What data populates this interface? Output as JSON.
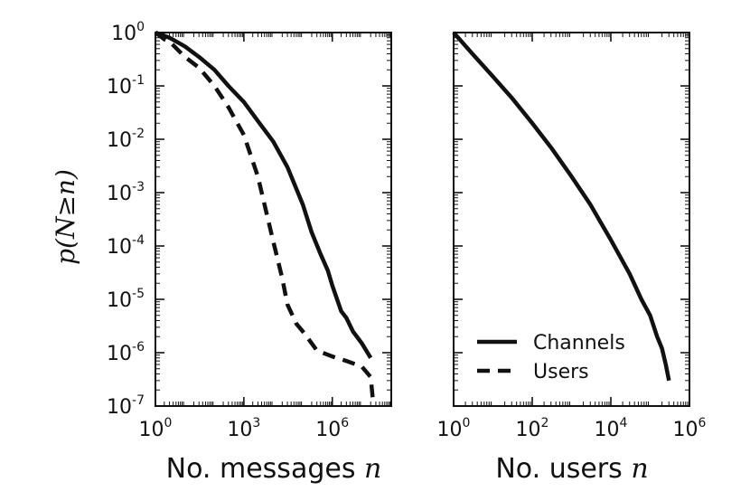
{
  "chart_data": [
    {
      "type": "line",
      "panel": "left",
      "xlabel": "No. messages n",
      "ylabel": "p(N≥n)",
      "xscale": "log",
      "yscale": "log",
      "xlim": [
        1,
        100000000.0
      ],
      "ylim": [
        1e-07,
        1
      ],
      "xticks": [
        {
          "base": "10",
          "exp": "0",
          "value": 1
        },
        {
          "base": "10",
          "exp": "3",
          "value": 1000
        },
        {
          "base": "10",
          "exp": "6",
          "value": 1000000
        }
      ],
      "yticks": [
        {
          "base": "10",
          "exp": "0",
          "value": 1
        },
        {
          "base": "10",
          "exp": "-1",
          "value": 0.1
        },
        {
          "base": "10",
          "exp": "-2",
          "value": 0.01
        },
        {
          "base": "10",
          "exp": "-3",
          "value": 0.001
        },
        {
          "base": "10",
          "exp": "-4",
          "value": 0.0001
        },
        {
          "base": "10",
          "exp": "-5",
          "value": 1e-05
        },
        {
          "base": "10",
          "exp": "-6",
          "value": 1e-06
        },
        {
          "base": "10",
          "exp": "-7",
          "value": 1e-07
        }
      ],
      "series": [
        {
          "name": "Channels",
          "style": "solid",
          "x": [
            1,
            3,
            10,
            30,
            100,
            300,
            1000,
            3000,
            10000,
            30000,
            100000,
            200000,
            400000,
            700000,
            1000000,
            2000000,
            3000000,
            5000000,
            10000000,
            20000000
          ],
          "y": [
            1,
            0.8,
            0.55,
            0.35,
            0.2,
            0.1,
            0.05,
            0.022,
            0.009,
            0.003,
            0.0006,
            0.00018,
            7e-05,
            3.5e-05,
            1.8e-05,
            6e-06,
            4.5e-06,
            2.5e-06,
            1.5e-06,
            8e-07
          ]
        },
        {
          "name": "Users",
          "style": "dashed",
          "x": [
            1,
            2,
            3,
            10,
            30,
            100,
            300,
            1000,
            3000,
            5000,
            10000,
            20000,
            30000,
            60000,
            100000,
            200000,
            300000,
            1000000,
            3000000,
            10000000,
            20000000,
            25000000
          ],
          "y": [
            1,
            0.75,
            0.68,
            0.35,
            0.22,
            0.1,
            0.04,
            0.012,
            0.002,
            0.0006,
            0.00012,
            2.5e-05,
            8e-06,
            3.5e-06,
            2.5e-06,
            1.5e-06,
            1.1e-06,
            8.5e-07,
            7e-07,
            5.5e-07,
            3.5e-07,
            1e-07
          ]
        }
      ]
    },
    {
      "type": "line",
      "panel": "right",
      "xlabel": "No. users n",
      "xscale": "log",
      "yscale": "log",
      "xlim": [
        1,
        1000000
      ],
      "ylim": [
        1e-07,
        1
      ],
      "xticks": [
        {
          "base": "10",
          "exp": "0",
          "value": 1
        },
        {
          "base": "10",
          "exp": "2",
          "value": 100
        },
        {
          "base": "10",
          "exp": "4",
          "value": 10000
        },
        {
          "base": "10",
          "exp": "6",
          "value": 1000000
        }
      ],
      "legend": {
        "location": "lower left"
      },
      "series": [
        {
          "name": "Channels",
          "style": "solid",
          "x": [
            1,
            3,
            10,
            30,
            100,
            300,
            1000,
            3000,
            10000,
            30000,
            60000,
            100000,
            150000,
            200000,
            250000,
            300000
          ],
          "y": [
            1,
            0.4,
            0.15,
            0.06,
            0.02,
            0.007,
            0.002,
            0.0006,
            0.00013,
            3e-05,
            1e-05,
            5e-06,
            2e-06,
            1.2e-06,
            6e-07,
            3e-07
          ]
        }
      ]
    }
  ]
}
